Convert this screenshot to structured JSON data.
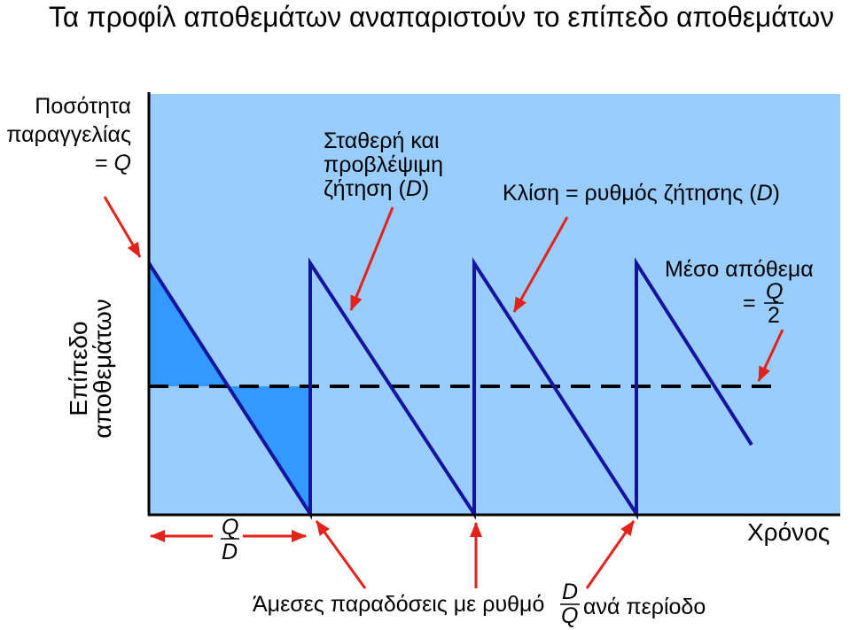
{
  "title": "Τα προφίλ αποθεμάτων αναπαριστούν το επίπεδο αποθεμάτων",
  "order_quantity_label": {
    "line1": "Ποσότητα",
    "line2": "παραγγελίας",
    "equals": "=",
    "symbol": "Q"
  },
  "y_axis_label": {
    "line1": "Επίπεδο",
    "line2": "αποθεμάτων"
  },
  "demand_note": {
    "line1": "Σταθερή και",
    "line2": "προβλέψιμη",
    "line3_prefix": "ζήτηση (",
    "line3_symbol": "D",
    "line3_suffix": ")"
  },
  "slope_note": {
    "prefix": "Κλίση = ρυθμός ζήτησης (",
    "symbol": "D",
    "suffix": ")"
  },
  "average_note": {
    "line1": "Μέσο απόθεμα",
    "equals": "=",
    "numerator": "Q",
    "denominator": "2"
  },
  "cycle_fraction": {
    "numerator": "Q",
    "denominator": "D"
  },
  "x_axis_label": "Χρόνος",
  "delivery_note": {
    "prefix": "Άμεσες παραδόσεις με ρυθμό",
    "numerator": "D",
    "denominator": "Q",
    "suffix": "ανά περίοδο"
  },
  "colors": {
    "plot_background": "#99ccff",
    "shaded_area": "#3399ff",
    "inventory_line": "#14149e",
    "average_line": "#000000",
    "arrow": "#e3231b"
  }
}
